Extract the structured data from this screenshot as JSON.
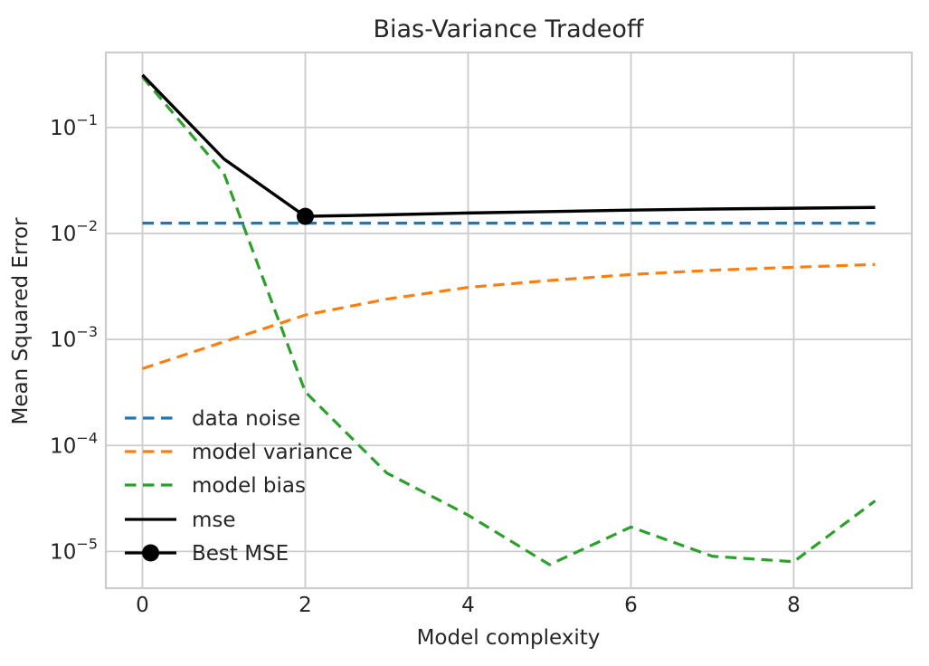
{
  "chart_data": {
    "type": "line",
    "title": "Bias-Variance Tradeoff",
    "xlabel": "Model complexity",
    "ylabel": "Mean Squared Error",
    "yscale": "log",
    "grid": true,
    "legend_position": "lower left",
    "x": [
      0,
      1,
      2,
      3,
      4,
      5,
      6,
      7,
      8,
      9
    ],
    "xlim": [
      -0.45,
      9.45
    ],
    "ylim": [
      4.5e-06,
      0.51
    ],
    "xticks": [
      0,
      2,
      4,
      6,
      8
    ],
    "ytick_exponents": [
      -1,
      -2,
      -3,
      -4,
      -5
    ],
    "series": [
      {
        "name": "data noise",
        "color": "#1f77b4",
        "dashed": true,
        "values": [
          0.0125,
          0.0125,
          0.0125,
          0.0125,
          0.0125,
          0.0125,
          0.0125,
          0.0125,
          0.0125,
          0.0125
        ]
      },
      {
        "name": "model variance",
        "color": "#ff7f0e",
        "dashed": true,
        "values": [
          0.00053,
          0.00095,
          0.0017,
          0.0024,
          0.0031,
          0.0036,
          0.0041,
          0.0045,
          0.0048,
          0.0051
        ]
      },
      {
        "name": "model bias",
        "color": "#2ca02c",
        "dashed": true,
        "values": [
          0.3,
          0.037,
          0.00032,
          5.5e-05,
          2.2e-05,
          7.5e-06,
          1.7e-05,
          9e-06,
          8e-06,
          3e-05
        ]
      },
      {
        "name": "mse",
        "color": "#000000",
        "dashed": false,
        "values": [
          0.313,
          0.0505,
          0.0145,
          0.015,
          0.0156,
          0.0161,
          0.0166,
          0.017,
          0.0173,
          0.0176
        ]
      }
    ],
    "best_point": {
      "label": "Best MSE",
      "x": 2,
      "y": 0.0145,
      "color": "#000000"
    }
  },
  "colors": {
    "grid": "#cccccc",
    "spine": "#cccccc",
    "text": "#262626",
    "background": "#ffffff"
  }
}
